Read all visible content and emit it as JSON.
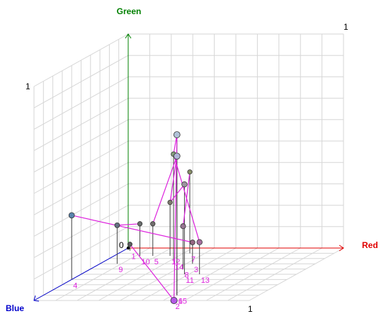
{
  "chart_data": {
    "type": "scatter3d",
    "title": "",
    "axes": {
      "x": {
        "label": "Red",
        "color": "#e00000",
        "range": [
          0,
          1
        ]
      },
      "y": {
        "label": "Green",
        "color": "#008000",
        "range": [
          0,
          1
        ]
      },
      "z": {
        "label": "Blue",
        "color": "#0000cc",
        "range": [
          0,
          1
        ]
      }
    },
    "tick_labels": {
      "origin": "0",
      "x_end": "1",
      "y_end": "1",
      "z_end": "1"
    },
    "grid": true,
    "line_color": "#dd22dd",
    "points": [
      {
        "label": "1",
        "x": 0.03,
        "y": 0.03,
        "z": 0.05
      },
      {
        "label": "2",
        "x": 0.65,
        "y": 0.0,
        "z": 1.0
      },
      {
        "label": "3",
        "x": 0.43,
        "y": 0.1,
        "z": 0.3
      },
      {
        "label": "4",
        "x": 0.0,
        "y": 0.3,
        "z": 0.6
      },
      {
        "label": "5",
        "x": 0.18,
        "y": 0.15,
        "z": 0.15
      },
      {
        "label": "6",
        "x": 0.62,
        "y": 0.65,
        "z": 0.9
      },
      {
        "label": "7",
        "x": 0.33,
        "y": 0.38,
        "z": 0.1
      },
      {
        "label": "8",
        "x": 0.43,
        "y": 0.2,
        "z": 0.4
      },
      {
        "label": "9",
        "x": 0.08,
        "y": 0.18,
        "z": 0.3
      },
      {
        "label": "10",
        "x": 0.12,
        "y": 0.15,
        "z": 0.15
      },
      {
        "label": "11",
        "x": 0.48,
        "y": 0.42,
        "z": 0.5
      },
      {
        "label": "12",
        "x": 0.26,
        "y": 0.25,
        "z": 0.15
      },
      {
        "label": "13",
        "x": 0.55,
        "y": 0.15,
        "z": 0.5
      },
      {
        "label": "14",
        "x": 0.32,
        "y": 0.5,
        "z": 0.25
      },
      {
        "label": "15",
        "x": 0.62,
        "y": 0.75,
        "z": 0.9
      }
    ],
    "connections": [
      [
        "1",
        "2"
      ],
      [
        "3",
        "4"
      ],
      [
        "5",
        "6"
      ],
      [
        "7",
        "8"
      ],
      [
        "9",
        "10"
      ],
      [
        "11",
        "12"
      ],
      [
        "13",
        "14"
      ],
      [
        "14",
        "15"
      ],
      [
        "6",
        "12"
      ],
      [
        "2",
        "15"
      ]
    ]
  }
}
